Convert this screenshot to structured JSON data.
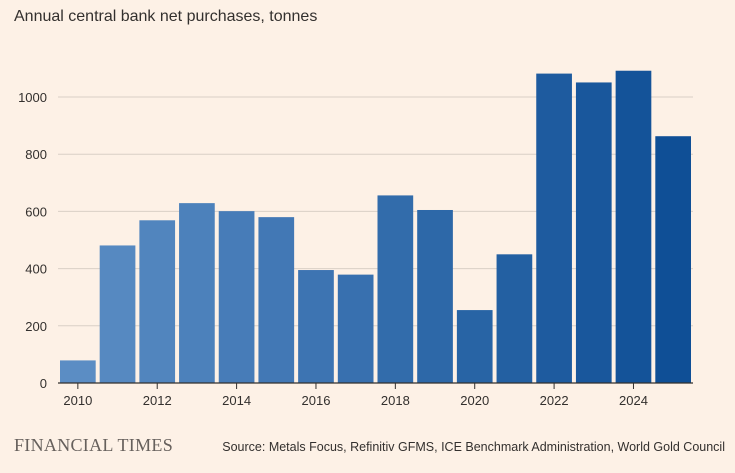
{
  "chart_data": {
    "type": "bar",
    "title": "Annual central bank net purchases, tonnes",
    "source": "Source: Metals Focus, Refinitiv GFMS, ICE Benchmark Administration, World Gold Council",
    "brand": "FINANCIAL TIMES",
    "categories": [
      "2010",
      "2011",
      "2012",
      "2013",
      "2014",
      "2015",
      "2016",
      "2017",
      "2018",
      "2019",
      "2020",
      "2021",
      "2022",
      "2023",
      "2024",
      "2025"
    ],
    "values": [
      79,
      481,
      569,
      629,
      601,
      580,
      395,
      379,
      656,
      605,
      255,
      450,
      1082,
      1051,
      1092,
      863
    ],
    "y_ticks": [
      0,
      200,
      400,
      600,
      800,
      1000
    ],
    "x_tick_labels": [
      "2010",
      "2012",
      "2014",
      "2016",
      "2018",
      "2020",
      "2022",
      "2024"
    ],
    "ylim": [
      0,
      1140
    ],
    "grid": true,
    "colors": {
      "bar_start": "#5b8dc4",
      "bar_end": "#0f4f96",
      "grid": "#d9cfc6",
      "axis": "#33302e"
    }
  }
}
